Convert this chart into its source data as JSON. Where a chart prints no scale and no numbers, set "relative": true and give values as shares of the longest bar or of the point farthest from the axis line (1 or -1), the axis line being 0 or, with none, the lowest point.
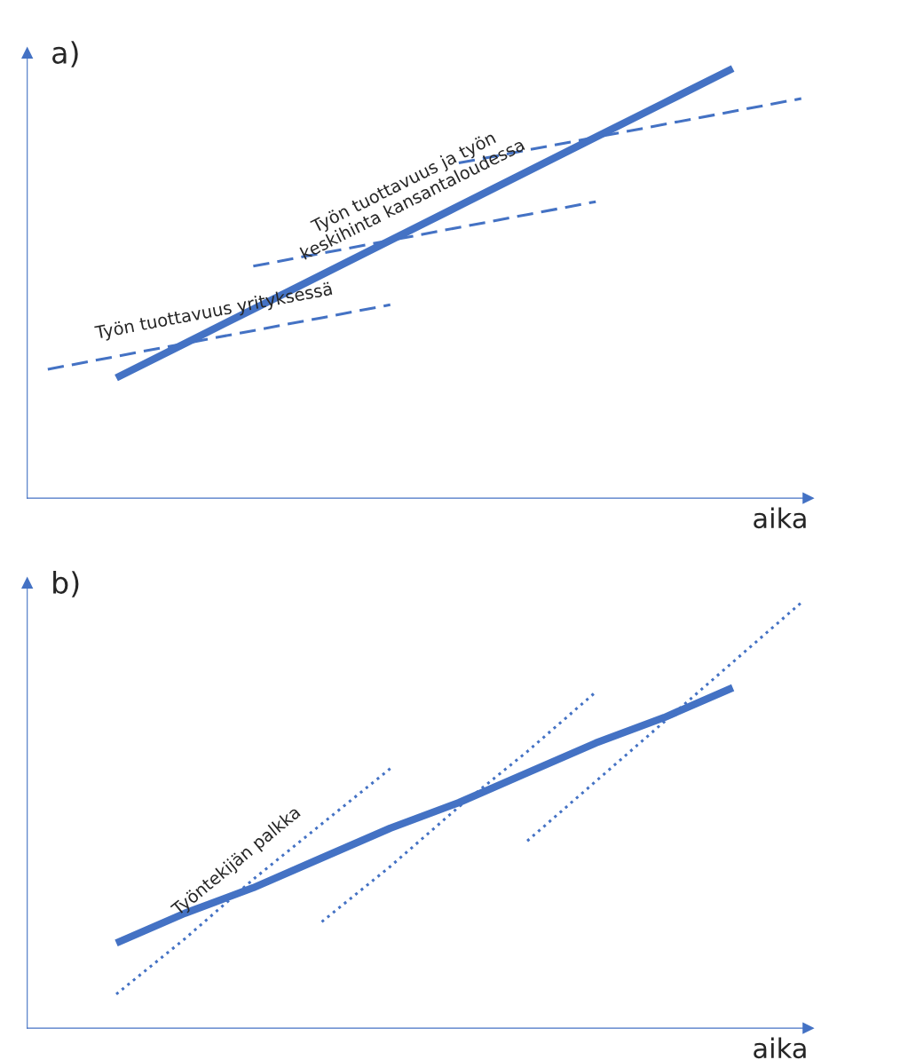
{
  "chart_data": [
    {
      "type": "line",
      "title": "a)",
      "xlabel": "aika",
      "relative": true,
      "legend": false,
      "categories": [
        null,
        null,
        null,
        null,
        null,
        null,
        null,
        null,
        null,
        null,
        null,
        null
      ],
      "series": [
        {
          "name": "Työn tuottavuus ja työn\nkeskihinta kansantaloudessa",
          "color": "#4472c4",
          "line_style": "solid",
          "values": [
            null,
            0.28,
            0.36,
            0.44,
            0.52,
            0.6,
            0.68,
            0.76,
            0.84,
            0.92,
            1.0,
            null
          ]
        },
        {
          "name": "Työn tuottavuus yrityksessä",
          "color": "#4472c4",
          "line_style": "dashed",
          "values": [
            0.3,
            0.33,
            0.36,
            0.39,
            0.42,
            0.45,
            null,
            null,
            null,
            null,
            null,
            null
          ]
        },
        {
          "color": "#4472c4",
          "line_style": "dashed",
          "values": [
            null,
            null,
            null,
            0.54,
            0.57,
            0.6,
            0.63,
            0.66,
            0.69,
            null,
            null,
            null
          ]
        },
        {
          "color": "#4472c4",
          "line_style": "dashed",
          "values": [
            null,
            null,
            null,
            null,
            null,
            null,
            0.78,
            0.81,
            0.84,
            0.87,
            0.9,
            0.93
          ]
        }
      ]
    },
    {
      "type": "line",
      "title": "b)",
      "xlabel": "aika",
      "relative": true,
      "legend": false,
      "categories": [
        null,
        null,
        null,
        null,
        null,
        null,
        null,
        null,
        null,
        null,
        null,
        null
      ],
      "series": [
        {
          "color": "#4472c4",
          "line_style": "solid",
          "values": [
            null,
            0.2,
            0.27,
            0.33,
            0.4,
            0.47,
            0.53,
            0.6,
            0.67,
            0.73,
            0.8,
            null
          ]
        },
        {
          "name": "Työntekijän palkka",
          "color": "#4472c4",
          "line_style": "dotted",
          "values": [
            null,
            0.08,
            0.21,
            0.35,
            0.48,
            0.61,
            null,
            null,
            null,
            null,
            null,
            null
          ]
        },
        {
          "color": "#4472c4",
          "line_style": "dotted",
          "values": [
            null,
            null,
            null,
            null,
            0.25,
            0.38,
            0.52,
            0.65,
            0.79,
            null,
            null,
            null
          ]
        },
        {
          "color": "#4472c4",
          "line_style": "dotted",
          "values": [
            null,
            null,
            null,
            null,
            null,
            null,
            null,
            0.44,
            0.58,
            0.72,
            0.86,
            1.0
          ]
        }
      ]
    }
  ]
}
